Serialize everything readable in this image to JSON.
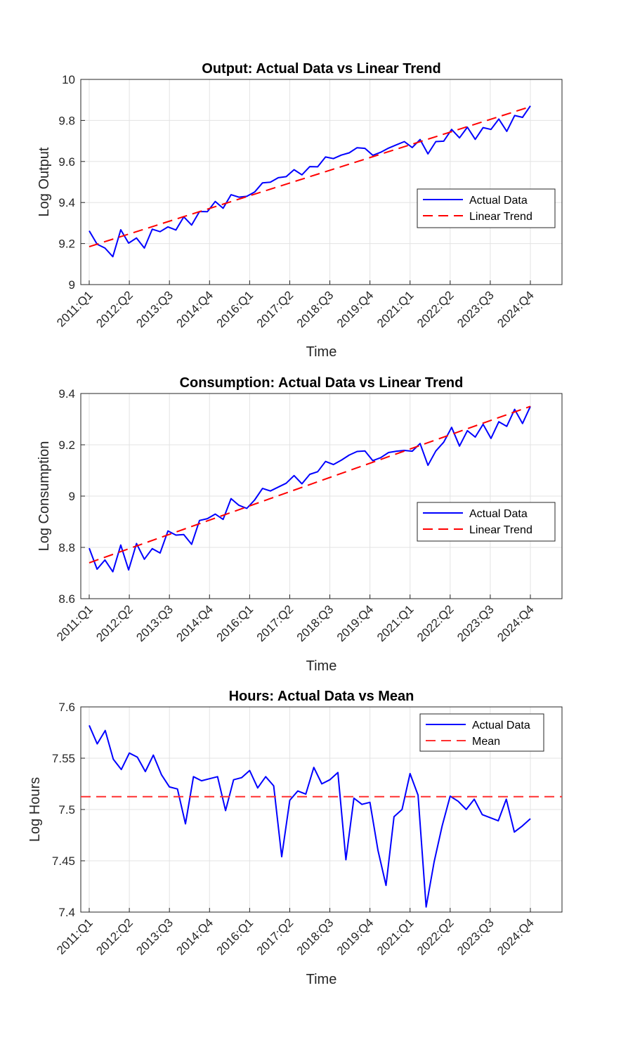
{
  "chart_data": [
    {
      "type": "line",
      "title": "Output: Actual Data vs Linear Trend",
      "xlabel": "Time",
      "ylabel": "Log Output",
      "ylim": [
        9,
        10
      ],
      "yticks": [
        "9",
        "9.2",
        "9.4",
        "9.6",
        "9.8",
        "10"
      ],
      "xticks": [
        "2011:Q1",
        "2012:Q2",
        "2013:Q3",
        "2014:Q4",
        "2016:Q1",
        "2017:Q2",
        "2018:Q3",
        "2019:Q4",
        "2021:Q1",
        "2022:Q2",
        "2023:Q3",
        "2024:Q4"
      ],
      "grid": true,
      "legend_position": "right",
      "series": [
        {
          "name": "Actual Data",
          "color": "#0000ff",
          "style": "solid",
          "values": [
            9.262,
            9.197,
            9.178,
            9.136,
            9.267,
            9.202,
            9.227,
            9.178,
            9.27,
            9.258,
            9.281,
            9.266,
            9.33,
            9.29,
            9.356,
            9.355,
            9.405,
            9.372,
            9.438,
            9.426,
            9.43,
            9.451,
            9.496,
            9.499,
            9.521,
            9.526,
            9.56,
            9.535,
            9.575,
            9.574,
            9.622,
            9.614,
            9.631,
            9.642,
            9.667,
            9.664,
            9.63,
            9.645,
            9.665,
            9.681,
            9.697,
            9.668,
            9.707,
            9.637,
            9.697,
            9.699,
            9.756,
            9.715,
            9.767,
            9.708,
            9.765,
            9.756,
            9.807,
            9.747,
            9.824,
            9.815,
            9.871
          ]
        },
        {
          "name": "Linear Trend",
          "color": "#ff0000",
          "style": "dashed",
          "values": [
            9.185,
            9.867
          ]
        }
      ]
    },
    {
      "type": "line",
      "title": "Consumption: Actual Data vs Linear Trend",
      "xlabel": "Time",
      "ylabel": "Log Consumption",
      "ylim": [
        8.6,
        9.4
      ],
      "yticks": [
        "8.6",
        "8.8",
        "9",
        "9.2",
        "9.4"
      ],
      "xticks": [
        "2011:Q1",
        "2012:Q2",
        "2013:Q3",
        "2014:Q4",
        "2016:Q1",
        "2017:Q2",
        "2018:Q3",
        "2019:Q4",
        "2021:Q1",
        "2022:Q2",
        "2023:Q3",
        "2024:Q4"
      ],
      "grid": true,
      "legend_position": "right",
      "series": [
        {
          "name": "Actual Data",
          "color": "#0000ff",
          "style": "solid",
          "values": [
            8.797,
            8.715,
            8.751,
            8.705,
            8.809,
            8.712,
            8.815,
            8.754,
            8.795,
            8.778,
            8.864,
            8.848,
            8.85,
            8.812,
            8.905,
            8.912,
            8.93,
            8.909,
            8.99,
            8.964,
            8.952,
            8.985,
            9.03,
            9.02,
            9.035,
            9.05,
            9.08,
            9.048,
            9.085,
            9.095,
            9.135,
            9.123,
            9.14,
            9.16,
            9.174,
            9.176,
            9.138,
            9.15,
            9.17,
            9.175,
            9.178,
            9.175,
            9.205,
            9.12,
            9.176,
            9.21,
            9.268,
            9.195,
            9.255,
            9.23,
            9.28,
            9.225,
            9.29,
            9.272,
            9.338,
            9.283,
            9.35
          ]
        },
        {
          "name": "Linear Trend",
          "color": "#ff0000",
          "style": "dashed",
          "values": [
            8.74,
            9.35
          ]
        }
      ]
    },
    {
      "type": "line",
      "title": "Hours: Actual Data vs Mean",
      "xlabel": "Time",
      "ylabel": "Log Hours",
      "ylim": [
        7.4,
        7.6
      ],
      "yticks": [
        "7.4",
        "7.45",
        "7.5",
        "7.55",
        "7.6"
      ],
      "xticks": [
        "2011:Q1",
        "2012:Q2",
        "2013:Q3",
        "2014:Q4",
        "2016:Q1",
        "2017:Q2",
        "2018:Q3",
        "2019:Q4",
        "2021:Q1",
        "2022:Q2",
        "2023:Q3",
        "2024:Q4"
      ],
      "grid": true,
      "legend_position": "top-right",
      "series": [
        {
          "name": "Actual Data",
          "color": "#0000ff",
          "style": "solid",
          "values": [
            7.582,
            7.564,
            7.577,
            7.549,
            7.539,
            7.555,
            7.551,
            7.537,
            7.553,
            7.534,
            7.522,
            7.52,
            7.486,
            7.532,
            7.528,
            7.53,
            7.532,
            7.499,
            7.529,
            7.531,
            7.538,
            7.521,
            7.532,
            7.523,
            7.454,
            7.509,
            7.518,
            7.515,
            7.541,
            7.525,
            7.529,
            7.536,
            7.451,
            7.511,
            7.505,
            7.507,
            7.46,
            7.426,
            7.493,
            7.5,
            7.535,
            7.514,
            7.405,
            7.449,
            7.484,
            7.513,
            7.508,
            7.5,
            7.51,
            7.495,
            7.492,
            7.489,
            7.51,
            7.478,
            7.484,
            7.491
          ]
        },
        {
          "name": "Mean",
          "color": "#ff3030",
          "style": "dashed",
          "values": [
            7.5125,
            7.5125
          ]
        }
      ]
    }
  ]
}
